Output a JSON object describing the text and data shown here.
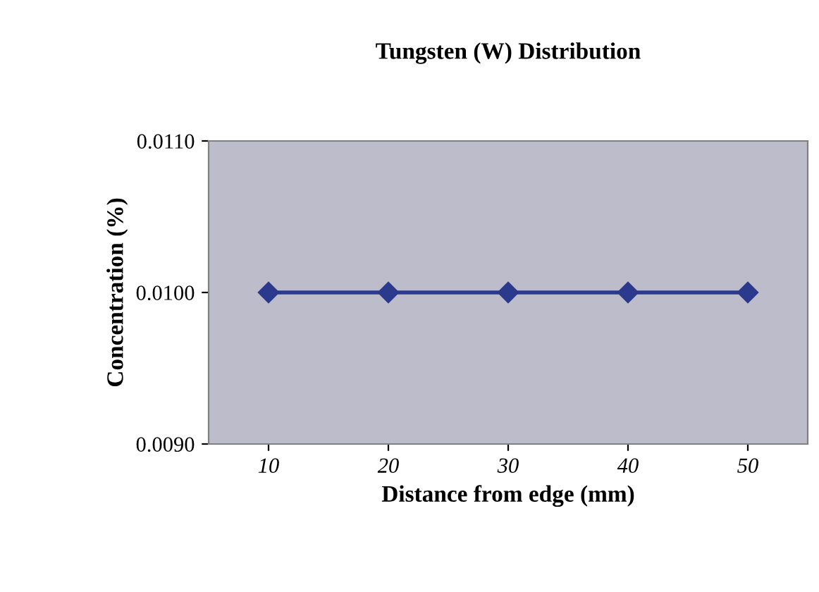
{
  "chart_data": {
    "type": "line",
    "title": "Tungsten (W) Distribution",
    "xlabel": "Distance from edge (mm)",
    "ylabel": "Concentration (%)",
    "categories": [
      "10",
      "20",
      "30",
      "40",
      "50"
    ],
    "series": [
      {
        "color": "#2b3a8c",
        "values": [
          0.01,
          0.01,
          0.01,
          0.01,
          0.01
        ]
      }
    ],
    "ylim": [
      0.009,
      0.011
    ],
    "yticks": [
      {
        "value": 0.009,
        "label": "0.0090"
      },
      {
        "value": 0.01,
        "label": "0.0100"
      },
      {
        "value": 0.011,
        "label": "0.0110"
      }
    ],
    "marker": "diamond",
    "line_style": "solid",
    "grid": false,
    "legend": false
  }
}
